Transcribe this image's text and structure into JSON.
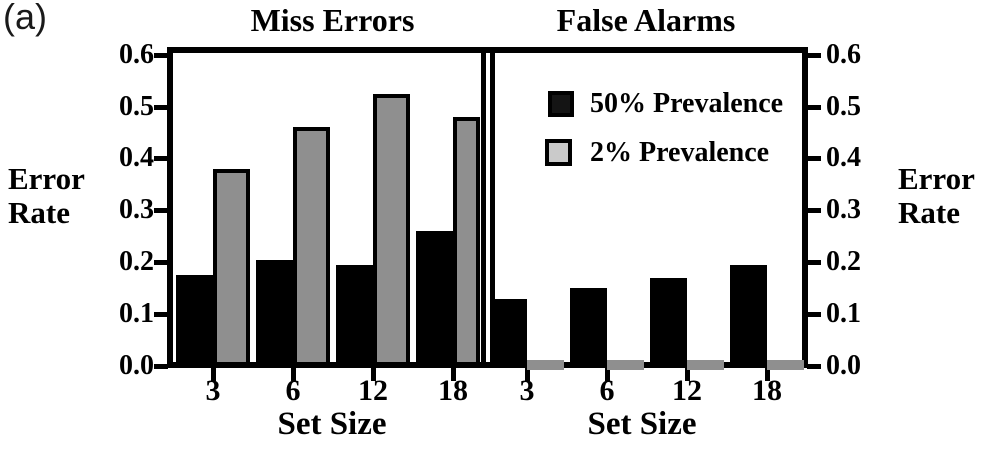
{
  "figure_label": "(a)",
  "colors": {
    "bar_black": "#000000",
    "bar_gray": "#8f8f8f",
    "legend_black_swatch": "#141414",
    "legend_gray_swatch": "#cacaca",
    "axis": "#000000",
    "background": "#ffffff"
  },
  "y_axis": {
    "label": "Error Rate",
    "label_lines": [
      "Error",
      "Rate"
    ],
    "tick_labels": [
      "0.6",
      "0.5",
      "0.4",
      "0.3",
      "0.2",
      "0.1",
      "0.0"
    ]
  },
  "legend": {
    "items": [
      {
        "label": "50% Prevalence",
        "swatch_color": "#141414"
      },
      {
        "label": "2% Prevalence",
        "swatch_color": "#cacaca"
      }
    ]
  },
  "chart_data": [
    {
      "type": "bar",
      "title": "Miss Errors",
      "categories": [
        "3",
        "6",
        "12",
        "18"
      ],
      "xlabel": "Set Size",
      "ylabel": "Error Rate",
      "ylim": [
        0.0,
        0.6
      ],
      "yticks": [
        0.6,
        0.5,
        0.4,
        0.3,
        0.2,
        0.1,
        0.0
      ],
      "grid": false,
      "legend_position": "none",
      "series": [
        {
          "name": "50% Prevalence",
          "color": "#000000",
          "values": [
            0.175,
            0.205,
            0.195,
            0.26
          ]
        },
        {
          "name": "2% Prevalence",
          "color": "#8f8f8f",
          "values": [
            0.38,
            0.46,
            0.525,
            0.48
          ]
        }
      ]
    },
    {
      "type": "bar",
      "title": "False Alarms",
      "categories": [
        "3",
        "6",
        "12",
        "18"
      ],
      "xlabel": "Set Size",
      "ylabel": "Error Rate",
      "ylim": [
        0.0,
        0.6
      ],
      "yticks": [
        0.6,
        0.5,
        0.4,
        0.3,
        0.2,
        0.1,
        0.0
      ],
      "grid": false,
      "legend_position": "upper-left",
      "series": [
        {
          "name": "50% Prevalence",
          "color": "#000000",
          "values": [
            0.13,
            0.15,
            0.17,
            0.195
          ]
        },
        {
          "name": "2% Prevalence",
          "color": "#8f8f8f",
          "values": [
            0.012,
            0.012,
            0.012,
            0.012
          ]
        }
      ]
    }
  ]
}
